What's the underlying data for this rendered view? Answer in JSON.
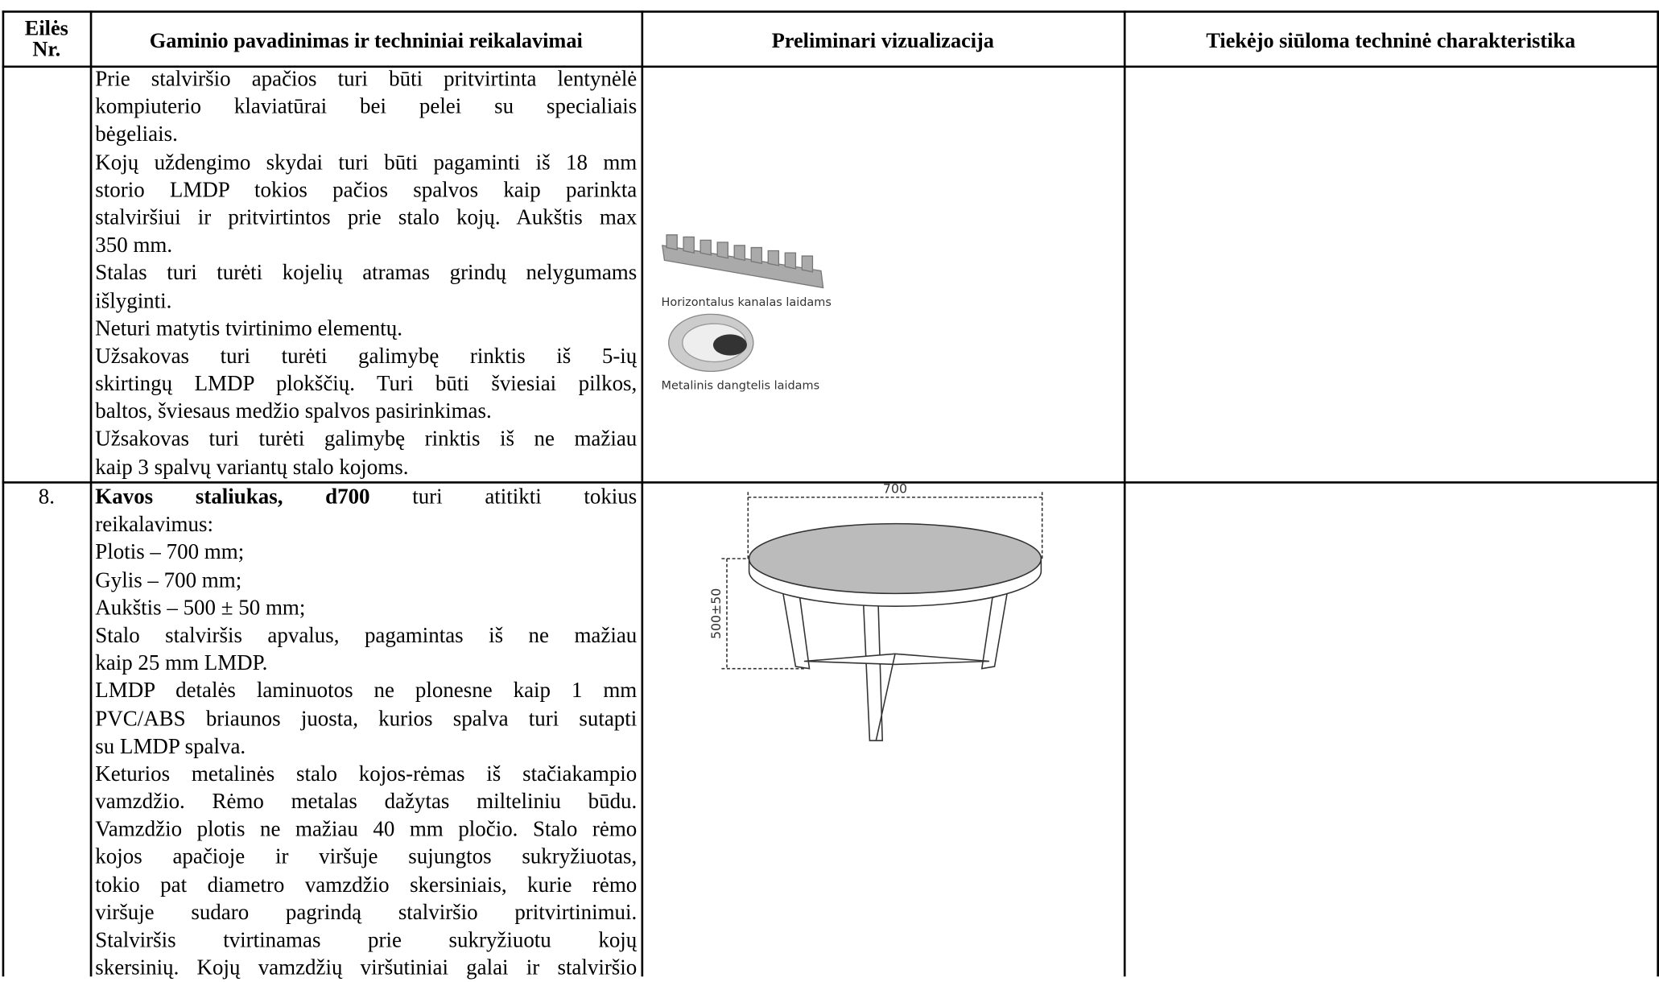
{
  "header": {
    "col_no": [
      "Eilės",
      "Nr."
    ],
    "col_name": "Gaminio pavadinimas ir techniniai reikalavimai",
    "col_visual": "Preliminari vizualizacija",
    "col_supplier": "Tiekėjo siūloma techninė charakteristika"
  },
  "rows": [
    {
      "paragraphs": [
        [
          "Prie stalviršio apačios turi būti pritvirtinta lentynėlė",
          "kompiuterio klaviatūrai bei pelei su specialiais",
          "bėgeliais."
        ],
        [
          "Kojų uždengimo skydai turi būti pagaminti iš 18 mm",
          "storio LMDP tokios pačios spalvos kaip parinkta",
          "stalviršiui ir pritvirtintos prie stalo kojų. Aukštis max",
          "350 mm."
        ],
        [
          "Stalas turi turėti kojelių atramas grindų nelygumams",
          "išlyginti."
        ],
        [
          "Neturi matytis tvirtinimo elementų."
        ],
        [
          "Užsakovas turi turėti galimybę rinktis iš 5-ių",
          "skirtingų LMDP plokščių. Turi būti šviesiai pilkos,",
          "baltos, šviesaus medžio spalvos pasirinkimas."
        ],
        [
          "Užsakovas turi turėti galimybę rinktis iš ne mažiau",
          "kaip 3 spalvų variantų stalo kojoms."
        ]
      ],
      "images": [
        "Horizontalus kanalas laidams",
        "Metalinis dangtelis laidams"
      ]
    },
    {
      "number": "8.",
      "paragraphs": [
        [
          {
            "bold": "Kavos staliukas, d700",
            "text": " turi atitikti tokius"
          },
          "reikalavimus:"
        ],
        [
          "Plotis – 700 mm;"
        ],
        [
          "Gylis – 700 mm;"
        ],
        [
          "Aukštis – 500 ± 50 mm;"
        ],
        [
          "Stalo stalviršis  apvalus, pagamintas iš ne mažiau",
          "kaip 25 mm LMDP."
        ],
        [
          "LMDP detalės laminuotos ne plonesne kaip 1 mm",
          "PVC/ABS briaunos juosta, kurios spalva turi sutapti",
          "su LMDP spalva."
        ],
        [
          "Keturios metalinės stalo kojos-rėmas iš stačiakampio",
          "vamzdžio. Rėmo metalas dažytas milteliniu būdu.",
          "Vamzdžio plotis ne mažiau 40 mm pločio. Stalo rėmo",
          "kojos apačioje ir viršuje sujungtos sukryžiuotas,",
          "tokio pat diametro vamzdžio skersiniais, kurie rėmo",
          "viršuje sudaro pagrindą stalviršio pritvirtinimui.",
          "Stalviršis tvirtinamas prie sukryžiuotu kojų",
          "skersinių. Kojų vamzdžių viršutiniai galai ir stalviršio"
        ]
      ],
      "drawing": {
        "width_label": "700",
        "height_label": "500±50"
      }
    }
  ]
}
